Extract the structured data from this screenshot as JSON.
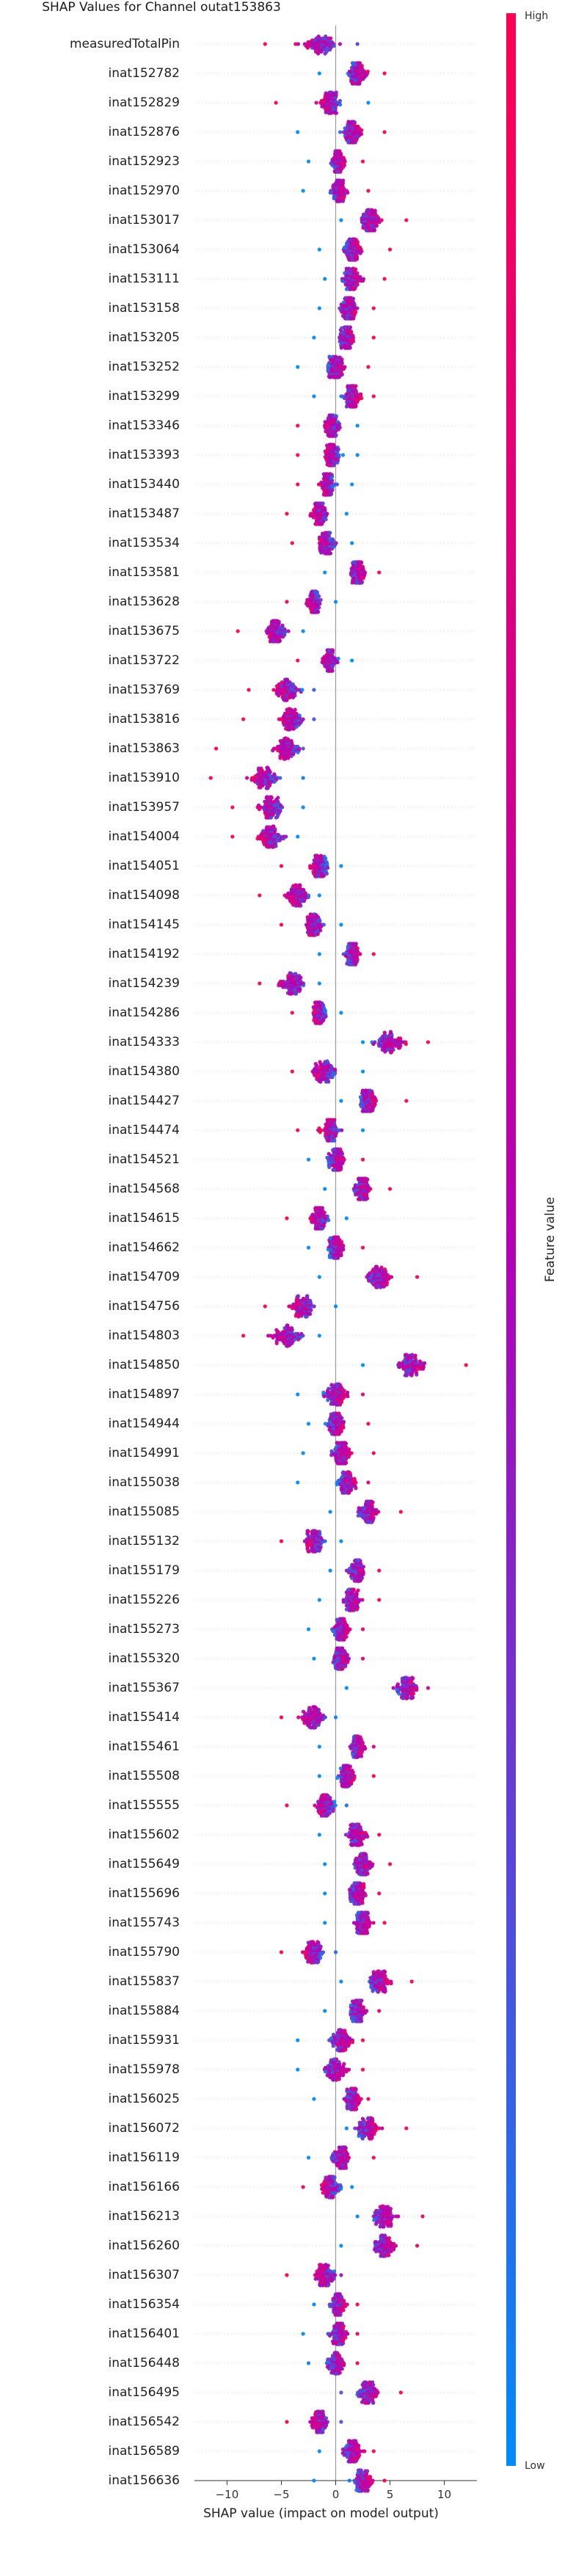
{
  "chart_data": {
    "type": "scatter",
    "title": "SHAP Values for Channel outat153863",
    "xlabel": "SHAP value (impact on model output)",
    "ylabel": "",
    "x_ticks": [
      -10,
      -5,
      0,
      5,
      10
    ],
    "xlim": [
      -13,
      13
    ],
    "colorbar": {
      "label": "Feature value",
      "high_label": "High",
      "low_label": "Low",
      "high_color": "#ff0052",
      "low_color": "#008bfb"
    },
    "features": [
      {
        "name": "measuredTotalPin",
        "center": -1.5,
        "spread": 3.0,
        "min": -6.5,
        "max": 2.0
      },
      {
        "name": "inat152782",
        "center": 2.0,
        "spread": 1.4,
        "min": -1.5,
        "max": 4.5
      },
      {
        "name": "inat152829",
        "center": -0.5,
        "spread": 1.6,
        "min": -5.5,
        "max": 3.0
      },
      {
        "name": "inat152876",
        "center": 1.5,
        "spread": 1.5,
        "min": -3.5,
        "max": 4.5
      },
      {
        "name": "inat152923",
        "center": 0.2,
        "spread": 1.0,
        "min": -2.5,
        "max": 2.5
      },
      {
        "name": "inat152970",
        "center": 0.2,
        "spread": 1.2,
        "min": -3.0,
        "max": 3.0
      },
      {
        "name": "inat153017",
        "center": 3.2,
        "spread": 1.6,
        "min": 0.5,
        "max": 6.5
      },
      {
        "name": "inat153064",
        "center": 1.5,
        "spread": 1.4,
        "min": -1.5,
        "max": 5.0
      },
      {
        "name": "inat153111",
        "center": 1.5,
        "spread": 1.3,
        "min": -1.0,
        "max": 4.5
      },
      {
        "name": "inat153158",
        "center": 1.2,
        "spread": 1.3,
        "min": -1.5,
        "max": 3.5
      },
      {
        "name": "inat153205",
        "center": 1.0,
        "spread": 1.2,
        "min": -2.0,
        "max": 3.5
      },
      {
        "name": "inat153252",
        "center": 0.0,
        "spread": 1.4,
        "min": -3.5,
        "max": 3.0
      },
      {
        "name": "inat153299",
        "center": 1.5,
        "spread": 1.3,
        "min": -2.0,
        "max": 3.5
      },
      {
        "name": "inat153346",
        "center": -0.3,
        "spread": 1.1,
        "min": -3.5,
        "max": 2.0
      },
      {
        "name": "inat153393",
        "center": -0.3,
        "spread": 1.2,
        "min": -3.5,
        "max": 2.0
      },
      {
        "name": "inat153440",
        "center": -0.8,
        "spread": 1.1,
        "min": -3.5,
        "max": 1.5
      },
      {
        "name": "inat153487",
        "center": -1.5,
        "spread": 1.2,
        "min": -4.5,
        "max": 1.0
      },
      {
        "name": "inat153534",
        "center": -0.8,
        "spread": 1.3,
        "min": -4.0,
        "max": 1.5
      },
      {
        "name": "inat153581",
        "center": 2.0,
        "spread": 1.3,
        "min": -1.0,
        "max": 4.0
      },
      {
        "name": "inat153628",
        "center": -2.0,
        "spread": 1.0,
        "min": -4.5,
        "max": 0.0
      },
      {
        "name": "inat153675",
        "center": -5.5,
        "spread": 1.8,
        "min": -9.0,
        "max": -3.0
      },
      {
        "name": "inat153722",
        "center": -0.5,
        "spread": 1.1,
        "min": -3.5,
        "max": 1.5
      },
      {
        "name": "inat153769",
        "center": -4.5,
        "spread": 1.8,
        "min": -8.0,
        "max": -2.0
      },
      {
        "name": "inat153816",
        "center": -4.0,
        "spread": 1.8,
        "min": -8.5,
        "max": -2.0
      },
      {
        "name": "inat153863",
        "center": -4.5,
        "spread": 2.0,
        "min": -11.0,
        "max": -3.0
      },
      {
        "name": "inat153910",
        "center": -6.5,
        "spread": 2.3,
        "min": -11.5,
        "max": -3.0
      },
      {
        "name": "inat153957",
        "center": -6.0,
        "spread": 1.9,
        "min": -9.5,
        "max": -3.0
      },
      {
        "name": "inat154004",
        "center": -6.0,
        "spread": 1.9,
        "min": -9.5,
        "max": -3.5
      },
      {
        "name": "inat154051",
        "center": -1.5,
        "spread": 1.4,
        "min": -5.0,
        "max": 0.5
      },
      {
        "name": "inat154098",
        "center": -3.5,
        "spread": 1.7,
        "min": -7.0,
        "max": -1.5
      },
      {
        "name": "inat154145",
        "center": -2.0,
        "spread": 1.4,
        "min": -5.0,
        "max": 0.5
      },
      {
        "name": "inat154192",
        "center": 1.5,
        "spread": 1.2,
        "min": -1.5,
        "max": 3.5
      },
      {
        "name": "inat154239",
        "center": -4.0,
        "spread": 1.8,
        "min": -7.0,
        "max": -1.5
      },
      {
        "name": "inat154286",
        "center": -1.5,
        "spread": 1.1,
        "min": -4.0,
        "max": 0.5
      },
      {
        "name": "inat154333",
        "center": 5.0,
        "spread": 2.3,
        "min": 2.5,
        "max": 8.5
      },
      {
        "name": "inat154380",
        "center": -1.0,
        "spread": 1.7,
        "min": -4.0,
        "max": 2.5
      },
      {
        "name": "inat154427",
        "center": 3.0,
        "spread": 1.3,
        "min": 0.5,
        "max": 6.5
      },
      {
        "name": "inat154474",
        "center": -0.5,
        "spread": 1.4,
        "min": -3.5,
        "max": 2.5
      },
      {
        "name": "inat154521",
        "center": 0.0,
        "spread": 1.3,
        "min": -2.5,
        "max": 2.5
      },
      {
        "name": "inat154568",
        "center": 2.5,
        "spread": 1.4,
        "min": -1.0,
        "max": 5.0
      },
      {
        "name": "inat154615",
        "center": -1.5,
        "spread": 1.5,
        "min": -4.5,
        "max": 1.0
      },
      {
        "name": "inat154662",
        "center": 0.0,
        "spread": 1.2,
        "min": -2.5,
        "max": 2.5
      },
      {
        "name": "inat154709",
        "center": 4.0,
        "spread": 2.0,
        "min": -1.5,
        "max": 7.5
      },
      {
        "name": "inat154756",
        "center": -3.0,
        "spread": 1.9,
        "min": -6.5,
        "max": 0.0
      },
      {
        "name": "inat154803",
        "center": -4.5,
        "spread": 2.3,
        "min": -8.5,
        "max": -1.5
      },
      {
        "name": "inat154850",
        "center": 7.0,
        "spread": 2.3,
        "min": 2.5,
        "max": 12.0
      },
      {
        "name": "inat154897",
        "center": 0.0,
        "spread": 1.8,
        "min": -3.5,
        "max": 2.5
      },
      {
        "name": "inat154944",
        "center": 0.0,
        "spread": 1.3,
        "min": -2.5,
        "max": 3.0
      },
      {
        "name": "inat154991",
        "center": 0.5,
        "spread": 1.5,
        "min": -3.0,
        "max": 3.5
      },
      {
        "name": "inat155038",
        "center": 1.0,
        "spread": 1.4,
        "min": -3.5,
        "max": 3.0
      },
      {
        "name": "inat155085",
        "center": 3.0,
        "spread": 1.5,
        "min": -0.5,
        "max": 6.0
      },
      {
        "name": "inat155132",
        "center": -2.0,
        "spread": 1.4,
        "min": -5.0,
        "max": 0.5
      },
      {
        "name": "inat155179",
        "center": 2.0,
        "spread": 1.3,
        "min": -0.5,
        "max": 4.0
      },
      {
        "name": "inat155226",
        "center": 1.5,
        "spread": 1.3,
        "min": -1.5,
        "max": 4.0
      },
      {
        "name": "inat155273",
        "center": 0.5,
        "spread": 1.3,
        "min": -2.5,
        "max": 2.5
      },
      {
        "name": "inat155320",
        "center": 0.5,
        "spread": 1.2,
        "min": -2.0,
        "max": 2.5
      },
      {
        "name": "inat155367",
        "center": 6.5,
        "spread": 1.8,
        "min": 1.0,
        "max": 8.5
      },
      {
        "name": "inat155414",
        "center": -2.0,
        "spread": 1.7,
        "min": -5.0,
        "max": 0.0
      },
      {
        "name": "inat155461",
        "center": 2.0,
        "spread": 1.1,
        "min": -1.5,
        "max": 3.5
      },
      {
        "name": "inat155508",
        "center": 1.0,
        "spread": 1.3,
        "min": -1.5,
        "max": 3.5
      },
      {
        "name": "inat155555",
        "center": -1.0,
        "spread": 1.4,
        "min": -4.5,
        "max": 1.0
      },
      {
        "name": "inat155602",
        "center": 2.0,
        "spread": 1.4,
        "min": -1.5,
        "max": 4.0
      },
      {
        "name": "inat155649",
        "center": 2.5,
        "spread": 1.4,
        "min": -1.0,
        "max": 5.0
      },
      {
        "name": "inat155696",
        "center": 2.0,
        "spread": 1.3,
        "min": -1.0,
        "max": 4.0
      },
      {
        "name": "inat155743",
        "center": 2.5,
        "spread": 1.3,
        "min": -1.0,
        "max": 4.5
      },
      {
        "name": "inat155790",
        "center": -2.0,
        "spread": 1.4,
        "min": -5.0,
        "max": 0.0
      },
      {
        "name": "inat155837",
        "center": 4.0,
        "spread": 1.6,
        "min": 0.5,
        "max": 7.0
      },
      {
        "name": "inat155884",
        "center": 2.0,
        "spread": 1.4,
        "min": -1.0,
        "max": 4.0
      },
      {
        "name": "inat155931",
        "center": 0.5,
        "spread": 1.6,
        "min": -3.5,
        "max": 2.5
      },
      {
        "name": "inat155978",
        "center": 0.0,
        "spread": 1.6,
        "min": -3.5,
        "max": 2.5
      },
      {
        "name": "inat156025",
        "center": 1.5,
        "spread": 1.2,
        "min": -2.0,
        "max": 3.0
      },
      {
        "name": "inat156072",
        "center": 3.0,
        "spread": 1.6,
        "min": 1.0,
        "max": 6.5
      },
      {
        "name": "inat156119",
        "center": 0.5,
        "spread": 1.4,
        "min": -2.5,
        "max": 3.5
      },
      {
        "name": "inat156166",
        "center": -0.5,
        "spread": 1.3,
        "min": -3.0,
        "max": 1.5
      },
      {
        "name": "inat156213",
        "center": 4.5,
        "spread": 1.8,
        "min": 2.0,
        "max": 8.0
      },
      {
        "name": "inat156260",
        "center": 4.5,
        "spread": 1.8,
        "min": 0.5,
        "max": 7.5
      },
      {
        "name": "inat156307",
        "center": -1.0,
        "spread": 1.6,
        "min": -4.5,
        "max": 0.5
      },
      {
        "name": "inat156354",
        "center": 0.3,
        "spread": 1.2,
        "min": -2.0,
        "max": 2.0
      },
      {
        "name": "inat156401",
        "center": 0.3,
        "spread": 1.3,
        "min": -3.0,
        "max": 2.0
      },
      {
        "name": "inat156448",
        "center": 0.0,
        "spread": 1.3,
        "min": -2.5,
        "max": 2.0
      },
      {
        "name": "inat156495",
        "center": 3.0,
        "spread": 1.6,
        "min": 0.5,
        "max": 6.0
      },
      {
        "name": "inat156542",
        "center": -1.5,
        "spread": 1.4,
        "min": -4.5,
        "max": 0.5
      },
      {
        "name": "inat156589",
        "center": 1.5,
        "spread": 1.4,
        "min": -1.5,
        "max": 3.5
      },
      {
        "name": "inat156636",
        "center": 2.5,
        "spread": 1.4,
        "min": -2.0,
        "max": 4.5
      }
    ]
  }
}
